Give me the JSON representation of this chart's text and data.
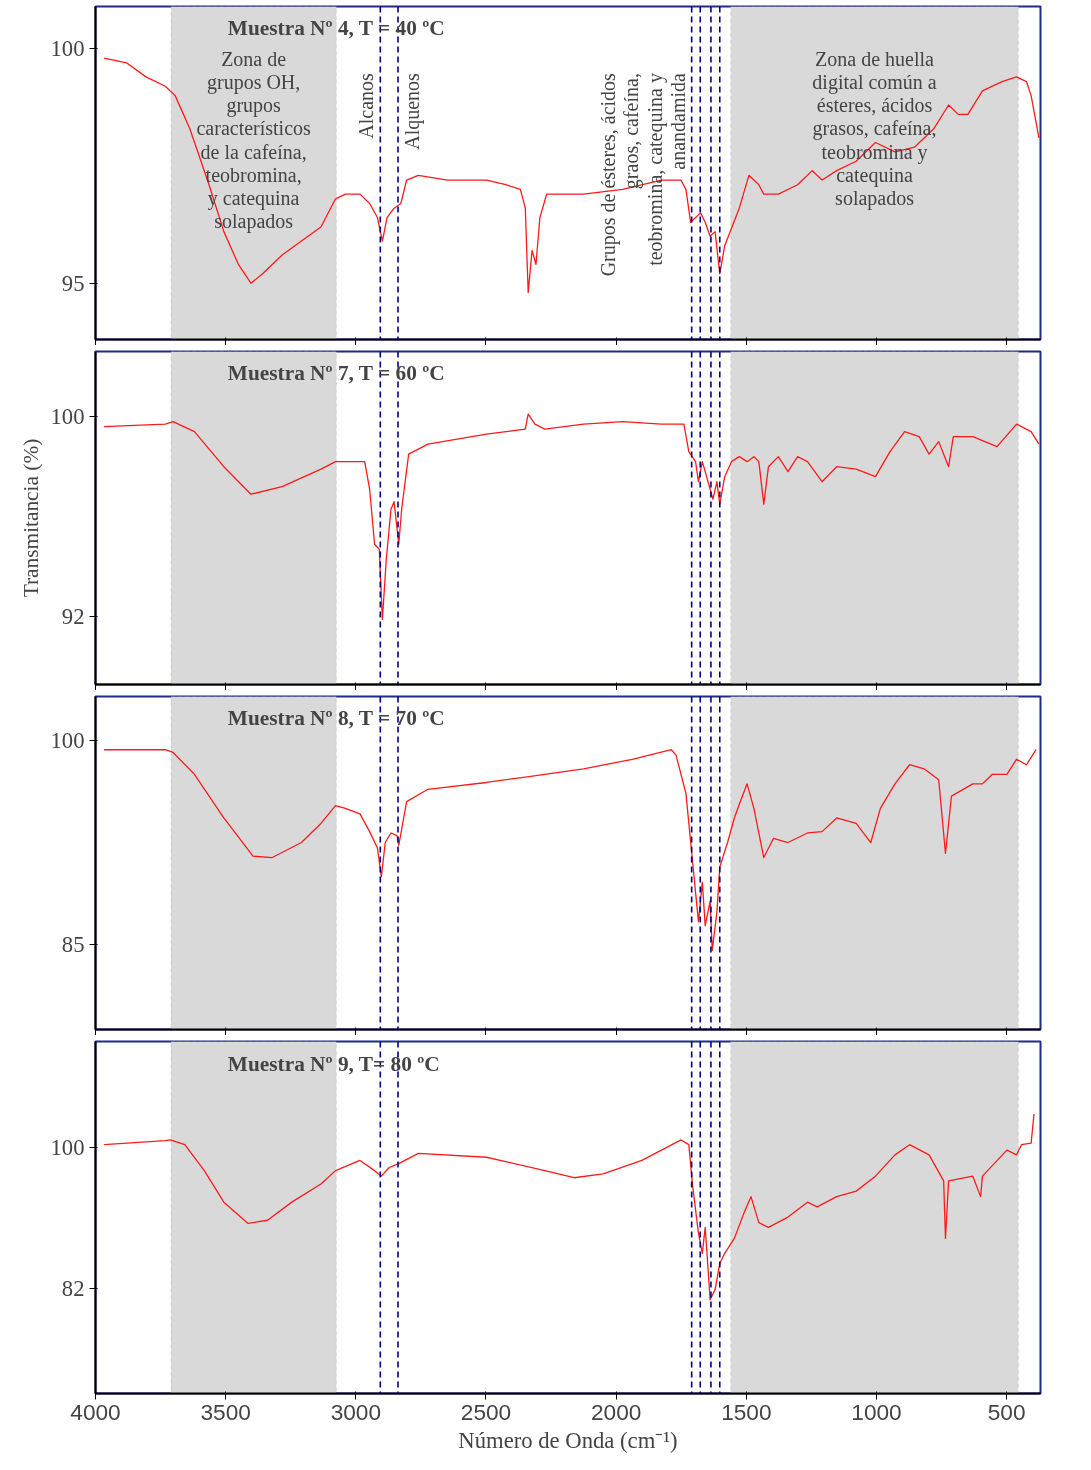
{
  "chart_data": [
    {
      "type": "line",
      "title": "Muestra Nº 4, T = 40 ºC",
      "xlim": [
        4000,
        370
      ],
      "xticks": [
        4000,
        3500,
        3000,
        2500,
        2000,
        1500,
        1000,
        500
      ],
      "ylim": [
        93.8,
        100.9
      ],
      "yticks": [
        95,
        100
      ],
      "tick_labels": "y",
      "series": [
        {
          "color": "#ff1a1a",
          "x": [
            3967,
            3881,
            3806,
            3732,
            3694,
            3638,
            3601,
            3564,
            3507,
            3451,
            3403,
            3358,
            3283,
            3209,
            3134,
            3078,
            3040,
            2984,
            2947,
            2917,
            2898,
            2880,
            2853,
            2827,
            2805,
            2760,
            2648,
            2498,
            2424,
            2368,
            2349,
            2338,
            2323,
            2308,
            2293,
            2267,
            2125,
            1975,
            1826,
            1751,
            1732,
            1714,
            1676,
            1658,
            1639,
            1620,
            1602,
            1583,
            1527,
            1490,
            1452,
            1433,
            1377,
            1303,
            1247,
            1209,
            1153,
            1078,
            1004,
            929,
            854,
            779,
            723,
            686,
            649,
            593,
            518,
            462,
            424,
            406,
            376
          ],
          "values": [
            99.8,
            99.7,
            99.4,
            99.2,
            99.0,
            98.3,
            97.7,
            97.1,
            96.1,
            95.4,
            95.0,
            95.2,
            95.6,
            95.9,
            96.2,
            96.8,
            96.9,
            96.9,
            96.7,
            96.4,
            95.9,
            96.4,
            96.6,
            96.7,
            97.2,
            97.3,
            97.2,
            97.2,
            97.1,
            97.0,
            96.6,
            94.8,
            95.7,
            95.4,
            96.4,
            96.9,
            96.9,
            97.0,
            97.2,
            97.2,
            97.0,
            96.3,
            96.5,
            96.3,
            96.0,
            96.1,
            95.2,
            95.8,
            96.6,
            97.3,
            97.1,
            96.9,
            96.9,
            97.1,
            97.4,
            97.2,
            97.4,
            97.6,
            98.0,
            97.8,
            97.9,
            98.3,
            98.8,
            98.6,
            98.6,
            99.1,
            99.3,
            99.4,
            99.3,
            99.0,
            98.1
          ]
        }
      ],
      "bands": [
        {
          "axis": "x",
          "from": 3710,
          "to": 3075,
          "color": "#d9d9d9",
          "label": "Zona de\ngrupos OH,\ngrupos\ncaracterísticos\nde la cafeína,\nteobromina,\ny catequina\nsolapados"
        },
        {
          "axis": "x",
          "from": 1560,
          "to": 455,
          "color": "#d9d9d9",
          "label": "Zona de huella\ndigital común a\nésteres, ácidos\ngrasos, cafeína,\nteobromina y\ncatequina\nsolapados"
        }
      ],
      "ref_lines": [
        {
          "axis": "x",
          "value": 2906,
          "color": "#000080",
          "line_style": "dashed",
          "label": "Alcanos"
        },
        {
          "axis": "x",
          "value": 2838,
          "color": "#000080",
          "line_style": "dashed",
          "label": "Alquenos"
        },
        {
          "axis": "x",
          "value": 1710,
          "color": "#000080",
          "line_style": "dashed",
          "label": "Grupos de ésteres, ácidos\ngraos, cafeína,\nteobromina, catequina y\nanandamida"
        },
        {
          "axis": "x",
          "value": 1677,
          "color": "#000080",
          "line_style": "dashed"
        },
        {
          "axis": "x",
          "value": 1636,
          "color": "#000080",
          "line_style": "dashed"
        },
        {
          "axis": "x",
          "value": 1602,
          "color": "#000080",
          "line_style": "dashed"
        }
      ]
    },
    {
      "type": "line",
      "title": "Muestra Nº 7, T = 60 ºC",
      "ylabel": "Transmitancia (%)",
      "xlim": [
        4000,
        370
      ],
      "xticks": [
        4000,
        3500,
        3000,
        2500,
        2000,
        1500,
        1000,
        500
      ],
      "ylim": [
        89.3,
        102.6
      ],
      "yticks": [
        92,
        100
      ],
      "tick_labels": "y",
      "series": [
        {
          "color": "#ff1a1a",
          "x": [
            3967,
            3732,
            3702,
            3620,
            3507,
            3403,
            3283,
            3134,
            3078,
            2966,
            2947,
            2928,
            2910,
            2898,
            2883,
            2865,
            2853,
            2835,
            2824,
            2797,
            2723,
            2498,
            2349,
            2338,
            2312,
            2274,
            2125,
            1975,
            1826,
            1740,
            1721,
            1695,
            1684,
            1669,
            1658,
            1639,
            1628,
            1613,
            1602,
            1583,
            1557,
            1527,
            1497,
            1471,
            1452,
            1433,
            1415,
            1377,
            1340,
            1303,
            1265,
            1209,
            1153,
            1078,
            1004,
            948,
            892,
            836,
            798,
            761,
            723,
            705,
            630,
            537,
            462,
            406,
            376
          ],
          "values": [
            99.6,
            99.7,
            99.8,
            99.4,
            98.0,
            96.9,
            97.2,
            97.9,
            98.2,
            98.2,
            97.1,
            94.9,
            94.7,
            91.9,
            94.3,
            96.3,
            96.6,
            94.9,
            96.3,
            98.5,
            98.9,
            99.3,
            99.5,
            100.1,
            99.7,
            99.5,
            99.7,
            99.8,
            99.7,
            99.7,
            98.6,
            98.2,
            97.4,
            98.2,
            97.8,
            97.1,
            96.7,
            97.4,
            96.5,
            97.6,
            98.2,
            98.4,
            98.2,
            98.4,
            98.2,
            96.5,
            98.0,
            98.4,
            97.8,
            98.4,
            98.2,
            97.4,
            98.0,
            97.9,
            97.6,
            98.6,
            99.4,
            99.2,
            98.5,
            99.0,
            98.0,
            99.2,
            99.2,
            98.8,
            99.7,
            99.4,
            98.9
          ]
        }
      ],
      "bands": [
        {
          "axis": "x",
          "from": 3710,
          "to": 3075,
          "color": "#d9d9d9"
        },
        {
          "axis": "x",
          "from": 1560,
          "to": 455,
          "color": "#d9d9d9"
        }
      ],
      "ref_lines": [
        {
          "axis": "x",
          "value": 2906,
          "color": "#000080",
          "line_style": "dashed"
        },
        {
          "axis": "x",
          "value": 2838,
          "color": "#000080",
          "line_style": "dashed"
        },
        {
          "axis": "x",
          "value": 1710,
          "color": "#000080",
          "line_style": "dashed"
        },
        {
          "axis": "x",
          "value": 1677,
          "color": "#000080",
          "line_style": "dashed"
        },
        {
          "axis": "x",
          "value": 1636,
          "color": "#000080",
          "line_style": "dashed"
        },
        {
          "axis": "x",
          "value": 1602,
          "color": "#000080",
          "line_style": "dashed"
        }
      ]
    },
    {
      "type": "line",
      "title": "Muestra Nº 8, T = 70 ºC",
      "xlim": [
        4000,
        370
      ],
      "xticks": [
        4000,
        3500,
        3000,
        2500,
        2000,
        1500,
        1000,
        500
      ],
      "ylim": [
        78.8,
        103.2
      ],
      "yticks": [
        85,
        100
      ],
      "tick_labels": "y",
      "series": [
        {
          "color": "#ff1a1a",
          "x": [
            3967,
            3732,
            3702,
            3620,
            3507,
            3395,
            3321,
            3209,
            3134,
            3078,
            3040,
            2984,
            2947,
            2917,
            2902,
            2887,
            2865,
            2842,
            2835,
            2805,
            2723,
            2498,
            2349,
            2125,
            1938,
            1788,
            1770,
            1732,
            1706,
            1684,
            1669,
            1658,
            1639,
            1631,
            1613,
            1602,
            1572,
            1546,
            1527,
            1497,
            1471,
            1433,
            1396,
            1340,
            1265,
            1209,
            1153,
            1078,
            1022,
            985,
            929,
            873,
            817,
            761,
            735,
            712,
            630,
            593,
            555,
            499,
            462,
            424,
            387
          ],
          "values": [
            99.3,
            99.3,
            99.1,
            97.5,
            94.3,
            91.5,
            91.4,
            92.5,
            93.9,
            95.2,
            95.0,
            94.6,
            93.3,
            92.1,
            90.0,
            92.5,
            93.2,
            93.0,
            92.3,
            95.5,
            96.4,
            96.9,
            97.3,
            97.9,
            98.6,
            99.3,
            98.9,
            96.1,
            91.0,
            86.7,
            89.6,
            86.4,
            88.2,
            84.6,
            87.4,
            90.7,
            92.5,
            94.3,
            95.3,
            96.8,
            95.0,
            91.4,
            92.8,
            92.5,
            93.2,
            93.3,
            94.3,
            93.9,
            92.5,
            95.0,
            96.8,
            98.2,
            97.9,
            97.1,
            91.7,
            95.9,
            96.8,
            96.8,
            97.5,
            97.5,
            98.6,
            98.2,
            99.3
          ]
        }
      ],
      "bands": [
        {
          "axis": "x",
          "from": 3710,
          "to": 3075,
          "color": "#d9d9d9"
        },
        {
          "axis": "x",
          "from": 1560,
          "to": 455,
          "color": "#d9d9d9"
        }
      ],
      "ref_lines": [
        {
          "axis": "x",
          "value": 2906,
          "color": "#000080",
          "line_style": "dashed"
        },
        {
          "axis": "x",
          "value": 2838,
          "color": "#000080",
          "line_style": "dashed"
        },
        {
          "axis": "x",
          "value": 1710,
          "color": "#000080",
          "line_style": "dashed"
        },
        {
          "axis": "x",
          "value": 1677,
          "color": "#000080",
          "line_style": "dashed"
        },
        {
          "axis": "x",
          "value": 1636,
          "color": "#000080",
          "line_style": "dashed"
        },
        {
          "axis": "x",
          "value": 1602,
          "color": "#000080",
          "line_style": "dashed"
        }
      ]
    },
    {
      "type": "line",
      "title": "Muestra Nº 9, T= 80 ºC",
      "xlabel": "Número de Onda (cm⁻¹)",
      "xlim": [
        4000,
        370
      ],
      "xticks": [
        4000,
        3500,
        3000,
        2500,
        2000,
        1500,
        1000,
        500
      ],
      "ylim": [
        68.7,
        113.4
      ],
      "yticks": [
        82,
        100
      ],
      "series": [
        {
          "color": "#ff1a1a",
          "x": [
            3967,
            3732,
            3713,
            3657,
            3582,
            3507,
            3414,
            3339,
            3246,
            3134,
            3078,
            2984,
            2928,
            2902,
            2872,
            2835,
            2760,
            2498,
            2274,
            2162,
            2050,
            1901,
            1751,
            1721,
            1706,
            1684,
            1669,
            1658,
            1639,
            1620,
            1602,
            1583,
            1546,
            1508,
            1482,
            1452,
            1415,
            1340,
            1265,
            1228,
            1153,
            1078,
            1004,
            929,
            873,
            798,
            742,
            735,
            723,
            630,
            600,
            593,
            499,
            462,
            443,
            406,
            395
          ],
          "values": [
            100.3,
            100.8,
            100.9,
            100.3,
            97.0,
            93.0,
            90.3,
            90.7,
            93.0,
            95.3,
            97.0,
            98.3,
            97.0,
            96.3,
            97.4,
            97.9,
            99.2,
            98.7,
            97.0,
            96.1,
            96.6,
            98.3,
            100.9,
            100.3,
            95.0,
            89.1,
            86.5,
            89.8,
            80.6,
            81.9,
            85.2,
            86.5,
            88.4,
            91.7,
            93.7,
            90.4,
            89.8,
            91.1,
            93.0,
            92.4,
            93.7,
            94.4,
            96.3,
            99.0,
            100.3,
            99.0,
            95.7,
            88.4,
            95.7,
            96.3,
            93.7,
            96.3,
            99.6,
            99.0,
            100.3,
            100.5,
            104.2
          ]
        }
      ],
      "bands": [
        {
          "axis": "x",
          "from": 3710,
          "to": 3075,
          "color": "#d9d9d9"
        },
        {
          "axis": "x",
          "from": 1560,
          "to": 455,
          "color": "#d9d9d9"
        }
      ],
      "ref_lines": [
        {
          "axis": "x",
          "value": 2906,
          "color": "#000080",
          "line_style": "dashed"
        },
        {
          "axis": "x",
          "value": 2838,
          "color": "#000080",
          "line_style": "dashed"
        },
        {
          "axis": "x",
          "value": 1710,
          "color": "#000080",
          "line_style": "dashed"
        },
        {
          "axis": "x",
          "value": 1677,
          "color": "#000080",
          "line_style": "dashed"
        },
        {
          "axis": "x",
          "value": 1636,
          "color": "#000080",
          "line_style": "dashed"
        },
        {
          "axis": "x",
          "value": 1602,
          "color": "#000080",
          "line_style": "dashed"
        }
      ]
    }
  ]
}
